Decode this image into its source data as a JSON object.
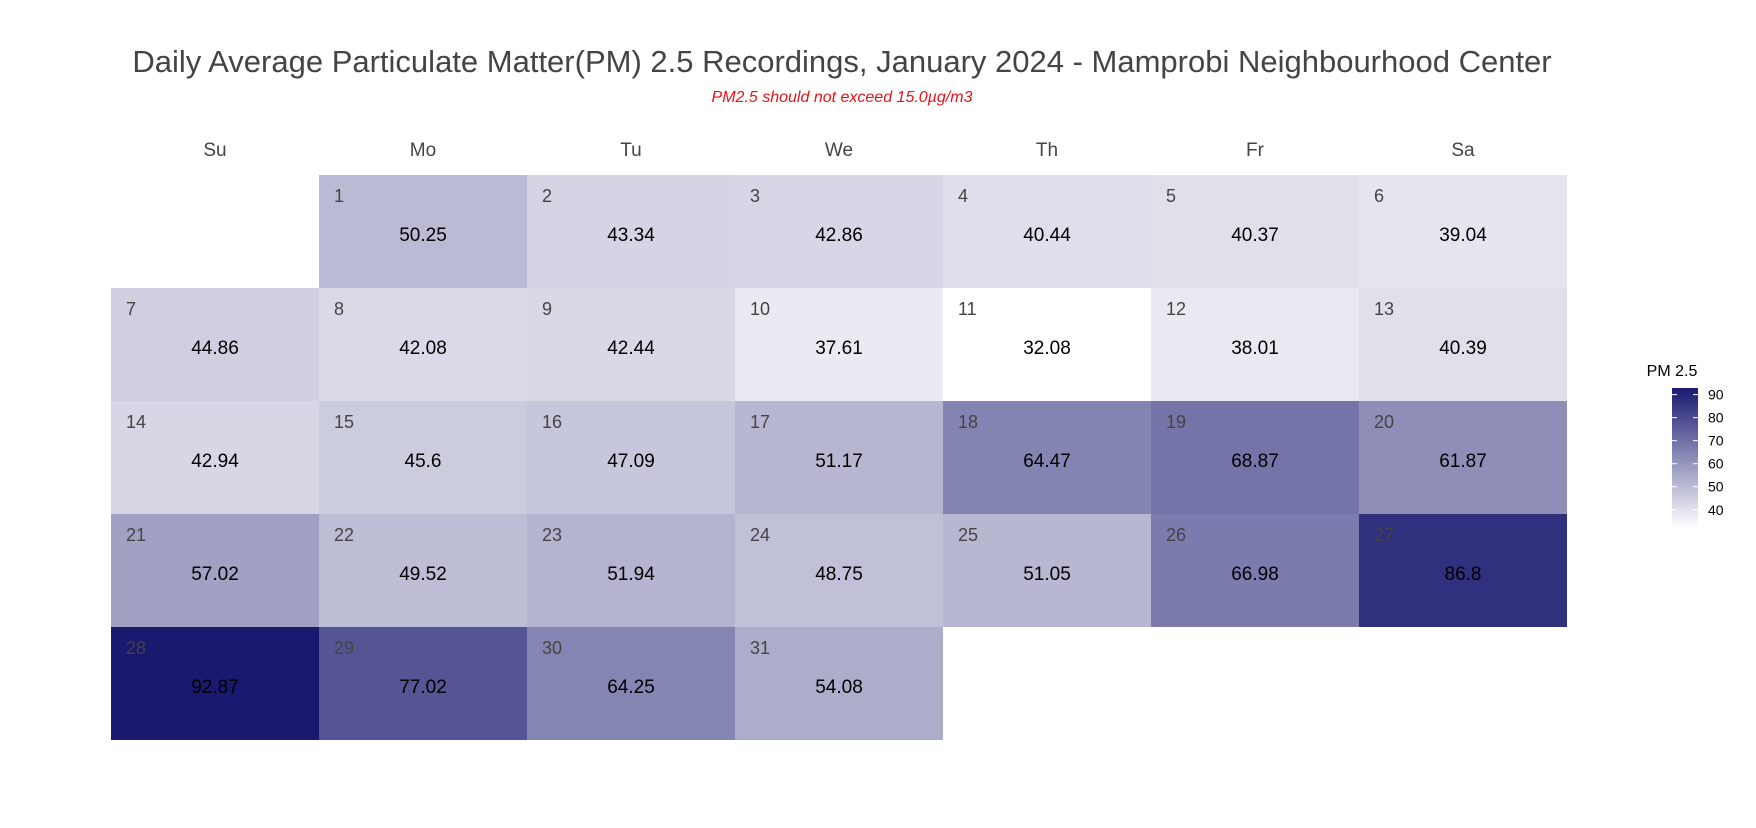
{
  "chart_data": {
    "type": "heatmap",
    "title": "Daily Average Particulate Matter(PM) 2.5 Recordings, January 2024 - Mamprobi Neighbourhood Center",
    "subtitle": "PM2.5 should not exceed 15.0µg/m3",
    "weekdays": [
      "Su",
      "Mo",
      "Tu",
      "We",
      "Th",
      "Fr",
      "Sa"
    ],
    "first_weekday_index": 1,
    "days": [
      1,
      2,
      3,
      4,
      5,
      6,
      7,
      8,
      9,
      10,
      11,
      12,
      13,
      14,
      15,
      16,
      17,
      18,
      19,
      20,
      21,
      22,
      23,
      24,
      25,
      26,
      27,
      28,
      29,
      30,
      31
    ],
    "values": [
      50.25,
      43.34,
      42.86,
      40.44,
      40.37,
      39.04,
      44.86,
      42.08,
      42.44,
      37.61,
      32.08,
      38.01,
      40.39,
      42.94,
      45.6,
      47.09,
      51.17,
      64.47,
      68.87,
      61.87,
      57.02,
      49.52,
      51.94,
      48.75,
      51.05,
      66.98,
      86.8,
      92.87,
      77.02,
      64.25,
      54.08
    ],
    "value_labels": [
      "50.25",
      "43.34",
      "42.86",
      "40.44",
      "40.37",
      "39.04",
      "44.86",
      "42.08",
      "42.44",
      "37.61",
      "32.08",
      "38.01",
      "40.39",
      "42.94",
      "45.6",
      "47.09",
      "51.17",
      "64.47",
      "68.87",
      "61.87",
      "57.02",
      "49.52",
      "51.94",
      "48.75",
      "51.05",
      "66.98",
      "86.8",
      "92.87",
      "77.02",
      "64.25",
      "54.08"
    ],
    "legend": {
      "title": "PM 2.5",
      "ticks": [
        40,
        50,
        60,
        70,
        80,
        90
      ],
      "tick_labels": [
        "40",
        "50",
        "60",
        "70",
        "80",
        "90"
      ],
      "placement": "right"
    },
    "color_scale": {
      "low_color": "#ffffff",
      "high_color": "#191970",
      "domain": [
        32.08,
        92.87
      ]
    }
  }
}
